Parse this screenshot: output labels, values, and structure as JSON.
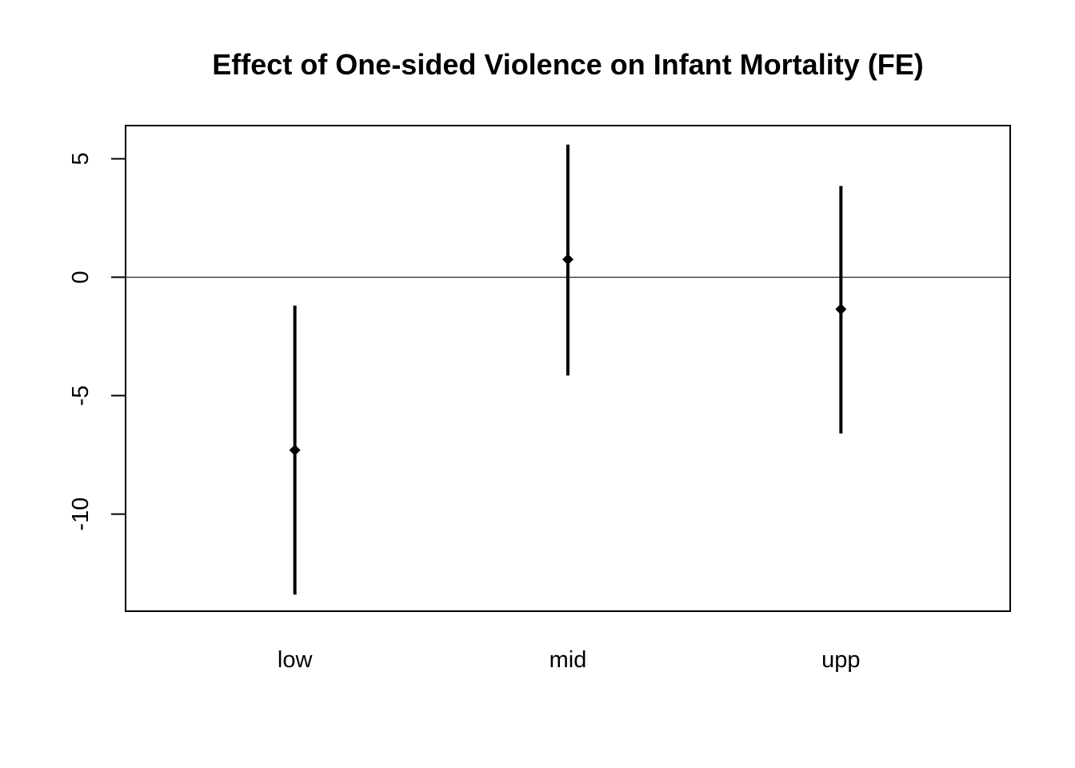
{
  "chart_data": {
    "type": "errorbar",
    "title": "Effect of One-sided Violence on Infant Mortality (FE)",
    "xlabel": "",
    "ylabel": "",
    "categories": [
      "low",
      "mid",
      "upp"
    ],
    "points": [
      {
        "category": "low",
        "estimate": -7.3,
        "lower": -13.4,
        "upper": -1.2
      },
      {
        "category": "mid",
        "estimate": 0.75,
        "lower": -4.15,
        "upper": 5.6
      },
      {
        "category": "upp",
        "estimate": -1.35,
        "lower": -6.6,
        "upper": 3.85
      }
    ],
    "reference_line": 0,
    "ylim": [
      -14.1,
      6.4
    ],
    "yticks": [
      5,
      0,
      -5,
      -10
    ],
    "ytick_labels": [
      "5",
      "0",
      "-5",
      "-10"
    ],
    "grid": false,
    "colors": {
      "marks": "#000000",
      "frame": "#000000",
      "reference": "#000000"
    }
  }
}
